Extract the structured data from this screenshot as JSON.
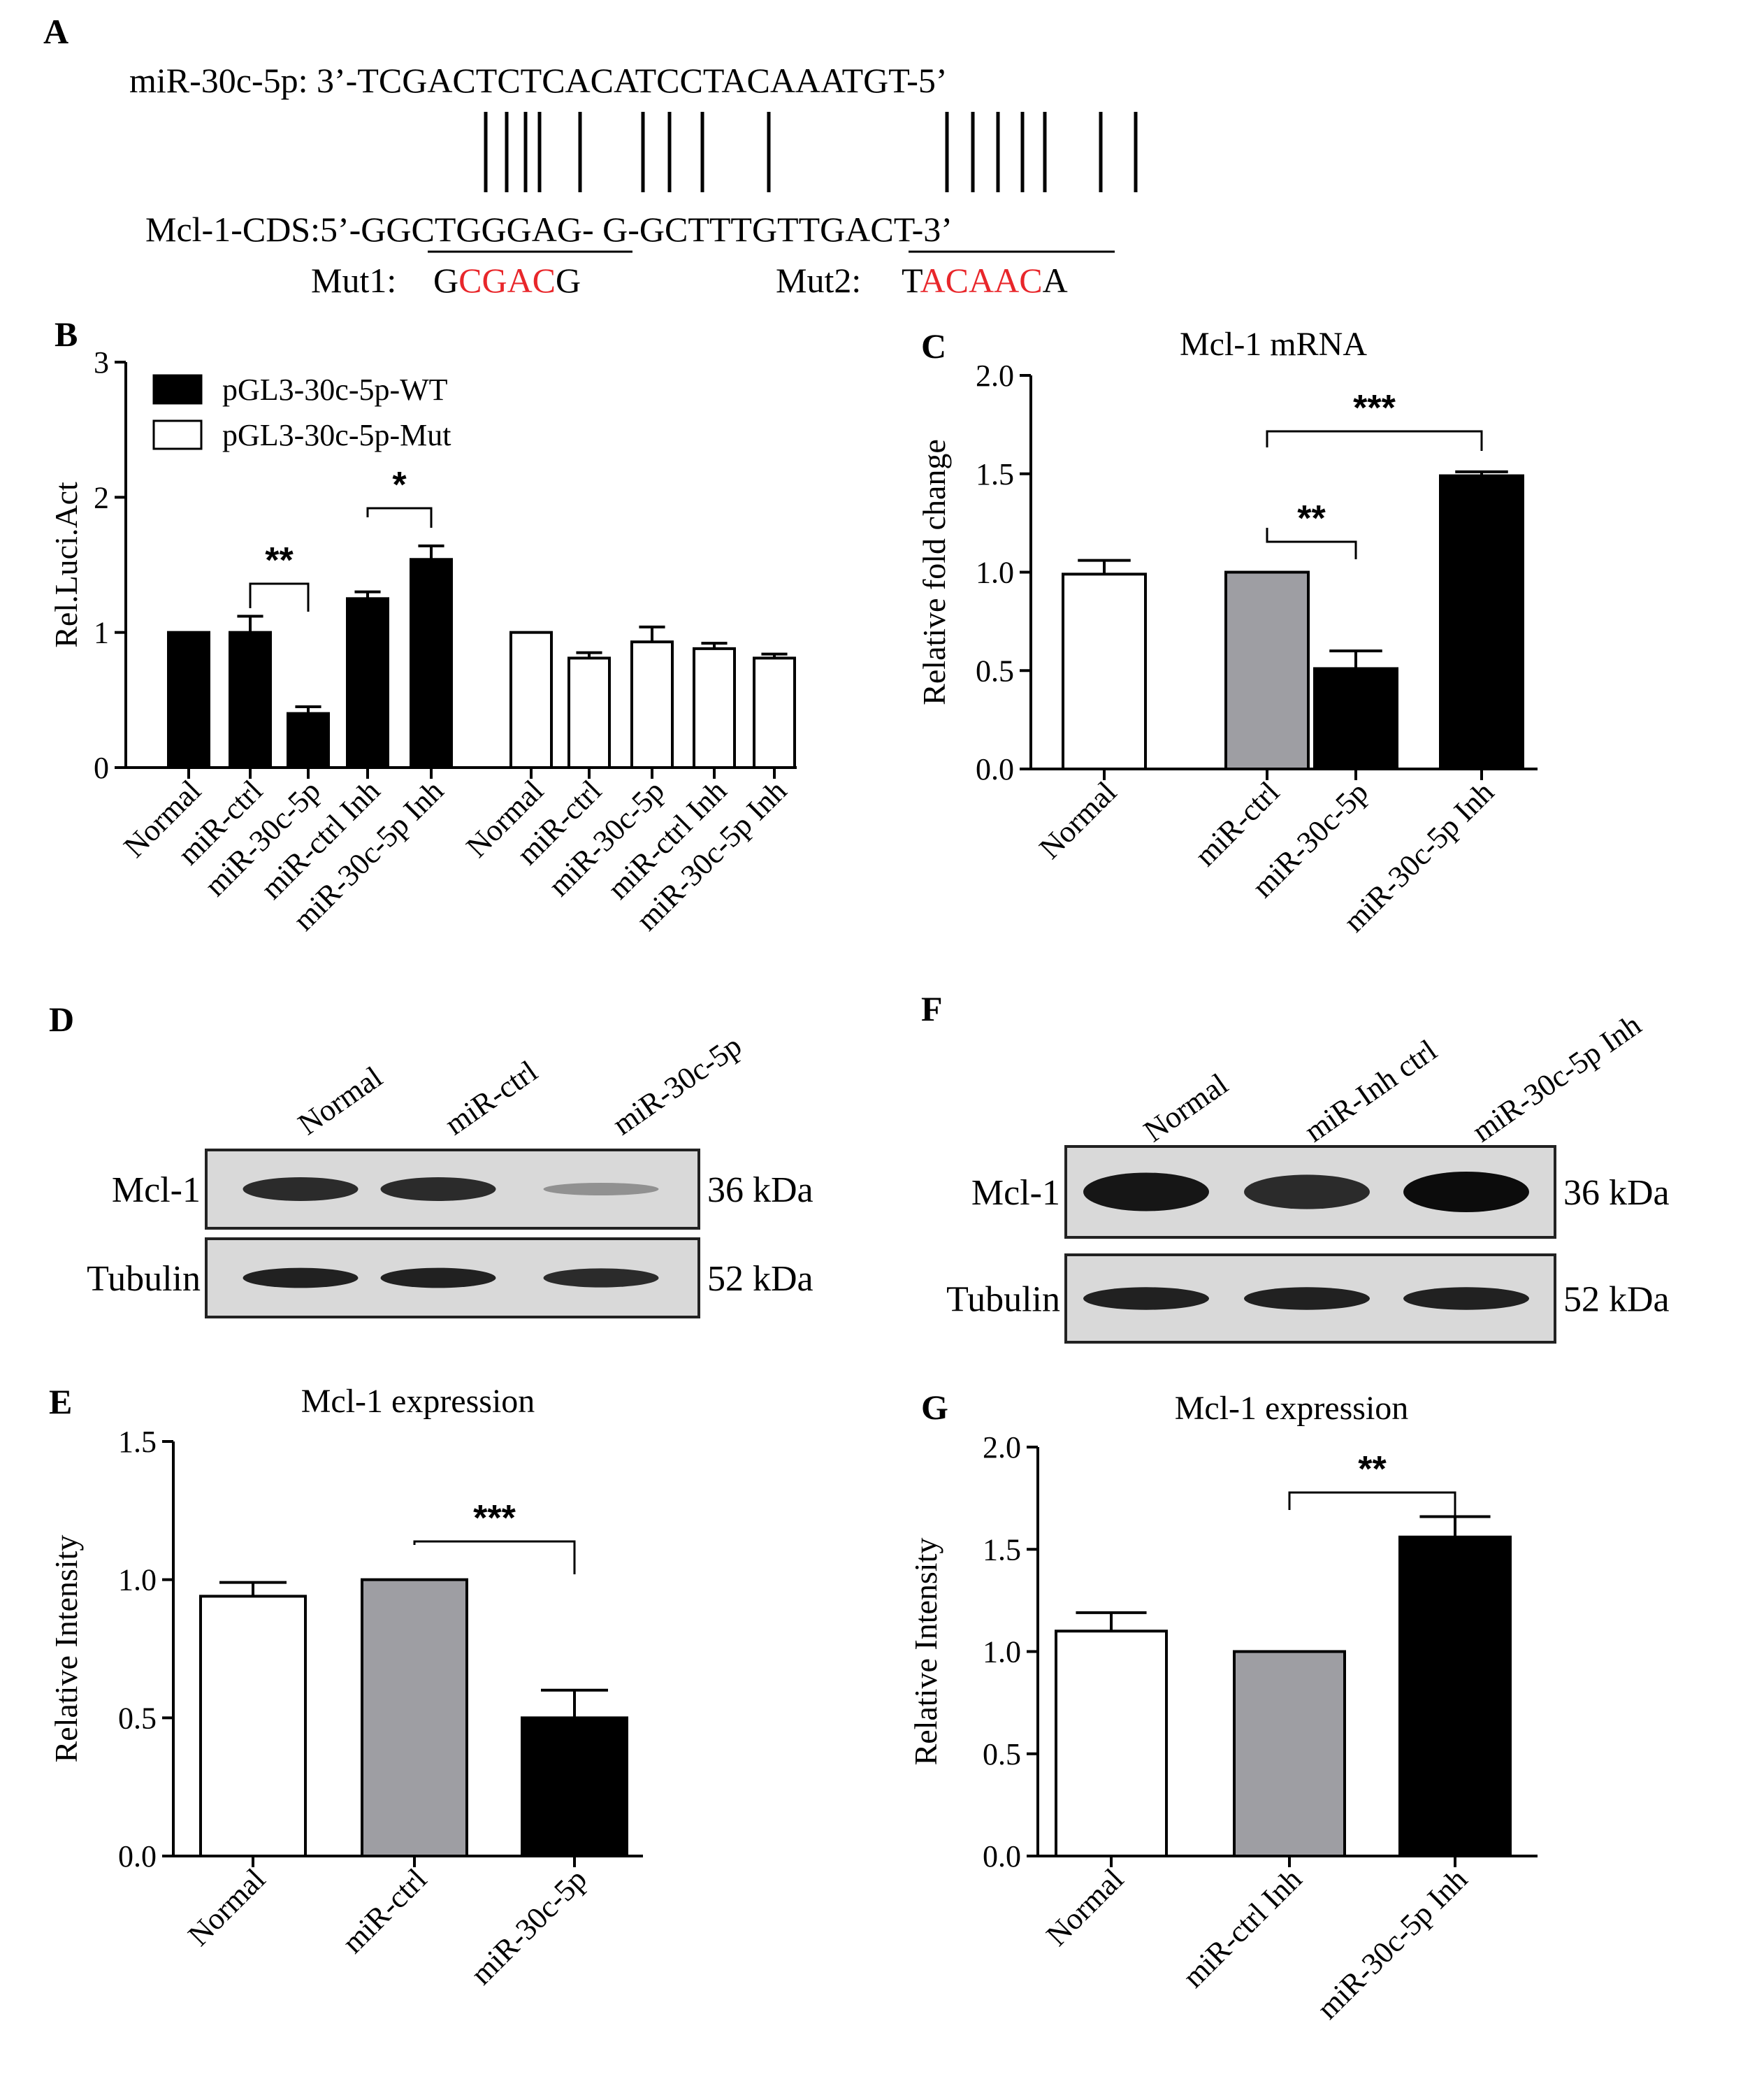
{
  "panelA": {
    "letter": "A",
    "mirna_line": "miR-30c-5p: 3’-TCGACTCTCACATCCTACAAATGT-5’",
    "target_line": "Mcl-1-CDS:5’-GGCTGGGAG- G-GCTTTGTTGACT-3’",
    "mut1_label": "Mut1:",
    "mut1_seq": [
      "G",
      "CGAC",
      "G"
    ],
    "mut2_label": "Mut2:",
    "mut2_seq": [
      "T",
      "ACAAC",
      "A"
    ],
    "mut_color": "#e8262a"
  },
  "chart_data": [
    {
      "panel": "B",
      "type": "bar",
      "title": "",
      "ylabel": "Rel.Luci.Act",
      "ylim": [
        0,
        3
      ],
      "yticks": [
        "0",
        "1",
        "2",
        "3"
      ],
      "legend": [
        "pGL3-30c-5p-WT",
        "pGL3-30c-5p-Mut"
      ],
      "groups": [
        {
          "series": "pGL3-30c-5p-WT",
          "fill": "#000000",
          "categories": [
            "Normal",
            "miR-ctrl",
            "miR-30c-5p",
            "miR-ctrl Inh",
            "miR-30c-5p Inh"
          ],
          "values": [
            1.0,
            1.0,
            0.4,
            1.25,
            1.54
          ],
          "errors": [
            0,
            0.12,
            0.05,
            0.05,
            0.1
          ]
        },
        {
          "series": "pGL3-30c-5p-Mut",
          "fill": "#ffffff",
          "categories": [
            "Normal",
            "miR-ctrl",
            "miR-30c-5p",
            "miR-ctrl Inh",
            "miR-30c-5p Inh"
          ],
          "values": [
            1.0,
            0.81,
            0.93,
            0.88,
            0.81
          ],
          "errors": [
            0,
            0.04,
            0.11,
            0.04,
            0.03
          ]
        }
      ],
      "significance": [
        {
          "from": "miR-ctrl",
          "to": "miR-30c-5p",
          "label": "**"
        },
        {
          "from": "miR-ctrl Inh",
          "to": "miR-30c-5p Inh",
          "label": "*"
        }
      ]
    },
    {
      "panel": "C",
      "type": "bar",
      "title": "Mcl-1 mRNA",
      "ylabel": "Relative fold change",
      "ylim": [
        0,
        2
      ],
      "yticks": [
        "0.0",
        "0.5",
        "1.0",
        "1.5",
        "2.0"
      ],
      "categories": [
        "Normal",
        "miR-ctrl",
        "miR-30c-5p",
        "miR-30c-5p Inh"
      ],
      "values": [
        0.99,
        1.0,
        0.51,
        1.49
      ],
      "errors": [
        0.07,
        0,
        0.09,
        0.02
      ],
      "fills": [
        "#ffffff",
        "#9e9ea3",
        "#000000",
        "#000000"
      ],
      "significance": [
        {
          "from": "miR-ctrl",
          "to": "miR-30c-5p",
          "label": "**"
        },
        {
          "from": "miR-ctrl",
          "to": "miR-30c-5p Inh",
          "label": "***"
        }
      ]
    },
    {
      "panel": "E",
      "type": "bar",
      "title": "Mcl-1 expression",
      "ylabel": "Relative Intensity",
      "ylim": [
        0,
        1.5
      ],
      "yticks": [
        "0.0",
        "0.5",
        "1.0",
        "1.5"
      ],
      "categories": [
        "Normal",
        "miR-ctrl",
        "miR-30c-5p"
      ],
      "values": [
        0.94,
        1.0,
        0.5
      ],
      "errors": [
        0.05,
        0,
        0.1
      ],
      "fills": [
        "#ffffff",
        "#9e9ea3",
        "#000000"
      ],
      "significance": [
        {
          "from": "miR-ctrl",
          "to": "miR-30c-5p",
          "label": "***"
        }
      ]
    },
    {
      "panel": "G",
      "type": "bar",
      "title": "Mcl-1 expression",
      "ylabel": "Relative Intensity",
      "ylim": [
        0,
        2
      ],
      "yticks": [
        "0.0",
        "0.5",
        "1.0",
        "1.5",
        "2.0"
      ],
      "categories": [
        "Normal",
        "miR-ctrl Inh",
        "miR-30c-5p Inh"
      ],
      "values": [
        1.1,
        1.0,
        1.56
      ],
      "errors": [
        0.09,
        0,
        0.1
      ],
      "fills": [
        "#ffffff",
        "#9e9ea3",
        "#000000"
      ],
      "significance": [
        {
          "from": "miR-ctrl Inh",
          "to": "miR-30c-5p Inh",
          "label": "**"
        }
      ]
    }
  ],
  "blotD": {
    "letter": "D",
    "lanes": [
      "Normal",
      "miR-ctrl",
      "miR-30c-5p"
    ],
    "rows": [
      {
        "label": "Mcl-1",
        "kda": "36 kDa",
        "intensity": [
          0.85,
          0.85,
          0.35
        ]
      },
      {
        "label": "Tubulin",
        "kda": "52 kDa",
        "intensity": [
          0.9,
          0.9,
          0.85
        ]
      }
    ]
  },
  "blotF": {
    "letter": "F",
    "lanes": [
      "Normal",
      "miR-Inh ctrl",
      "miR-30c-5p Inh"
    ],
    "rows": [
      {
        "label": "Mcl-1",
        "kda": "36 kDa",
        "intensity": [
          0.95,
          0.85,
          1.0
        ]
      },
      {
        "label": "Tubulin",
        "kda": "52 kDa",
        "intensity": [
          0.9,
          0.9,
          0.9
        ]
      }
    ]
  }
}
